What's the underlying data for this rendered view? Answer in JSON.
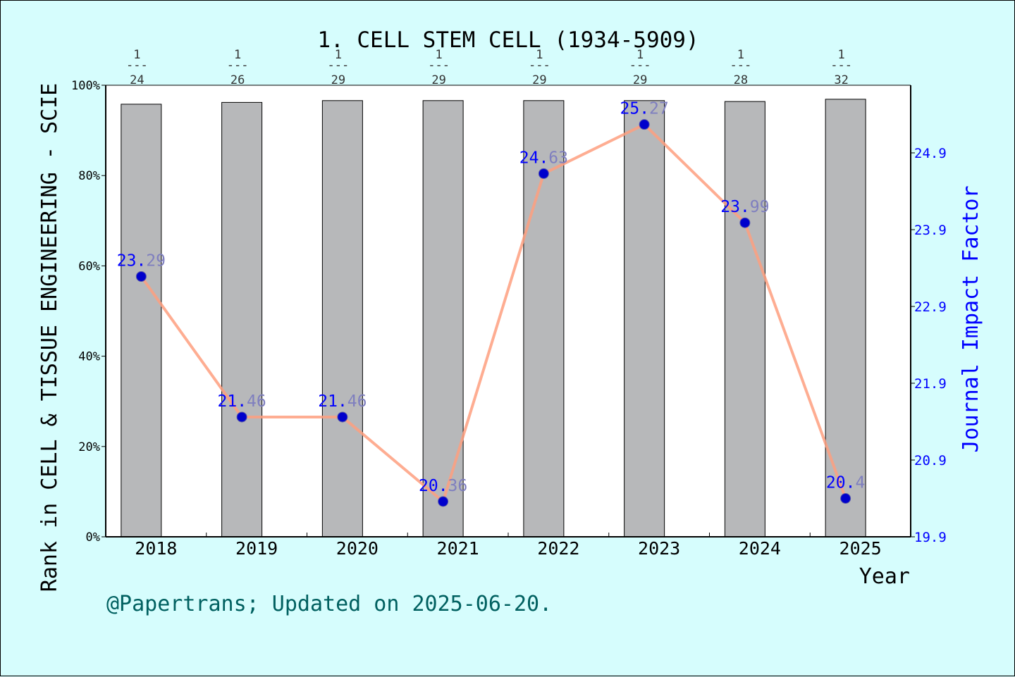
{
  "colors": {
    "background": "#d6fdfd",
    "bar_fill": "#b7b8ba",
    "line": "#fe9f7f",
    "marker": "#0000cc",
    "right_axis": "#0000ff",
    "value_label_head": "#0000ff",
    "value_label_tail": "#7f7fbf",
    "footer": "#006060"
  },
  "chart_data": {
    "type": "bar+line",
    "title": "1. CELL STEM CELL (1934-5909)",
    "xlabel": "Year",
    "ylabel_left": "Rank in CELL & TISSUE ENGINEERING - SCIE",
    "ylabel_right": "Journal Impact Factor",
    "categories": [
      "2018",
      "2019",
      "2020",
      "2021",
      "2022",
      "2023",
      "2024",
      "2025"
    ],
    "left_axis": {
      "ylim": [
        0,
        100
      ],
      "ticks": [
        0,
        20,
        40,
        60,
        80,
        100
      ],
      "tick_labels": [
        "0%",
        "20%",
        "40%",
        "60%",
        "80%",
        "100%"
      ]
    },
    "right_axis": {
      "ylim": [
        19.9,
        24.9
      ],
      "ticks": [
        19.9,
        20.9,
        21.9,
        22.9,
        23.9,
        24.9
      ],
      "tick_labels": [
        "19.9",
        "20.9",
        "21.9",
        "22.9",
        "23.9",
        "24.9"
      ]
    },
    "bars": {
      "name": "Rank percentile",
      "values": [
        95.8,
        96.2,
        96.6,
        96.6,
        96.6,
        96.6,
        96.4,
        96.9
      ]
    },
    "rank_labels": [
      {
        "rank": "1",
        "total": "24"
      },
      {
        "rank": "1",
        "total": "26"
      },
      {
        "rank": "1",
        "total": "29"
      },
      {
        "rank": "1",
        "total": "29"
      },
      {
        "rank": "1",
        "total": "29"
      },
      {
        "rank": "1",
        "total": "29"
      },
      {
        "rank": "1",
        "total": "28"
      },
      {
        "rank": "1",
        "total": "32"
      }
    ],
    "line": {
      "name": "Journal Impact Factor",
      "values": [
        23.29,
        21.46,
        21.46,
        20.36,
        24.63,
        25.27,
        23.99,
        20.4
      ],
      "labels": [
        "23.29",
        "21.46",
        "21.46",
        "20.36",
        "24.63",
        "25.27",
        "23.99",
        "20.4"
      ]
    },
    "grid": false,
    "legend": "none"
  },
  "footer": {
    "text": "@Papertrans; Updated on 2025-06-20."
  }
}
